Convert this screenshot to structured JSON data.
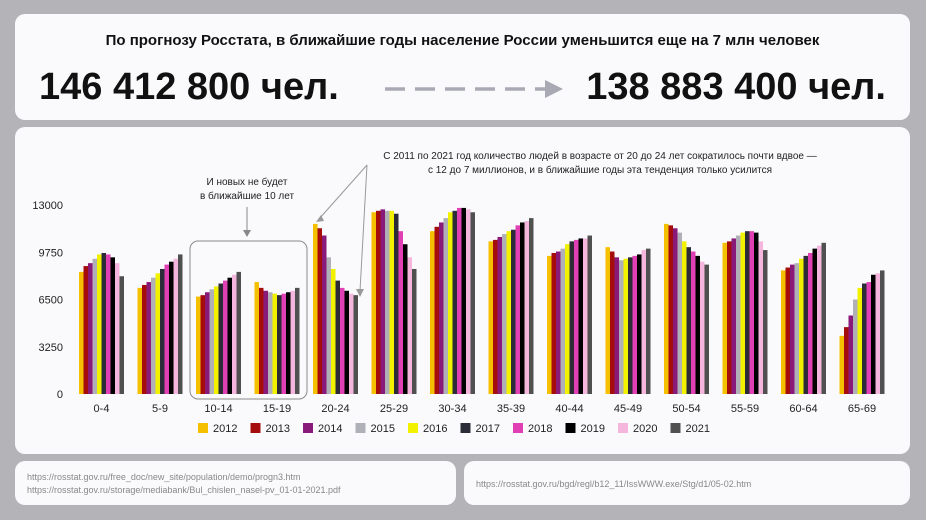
{
  "header": {
    "title": "По прогнозу Росстата, в ближайшие годы население России уменьшится еще на 7 млн человек",
    "current_population": "146 412 800 чел.",
    "forecast_population": "138 883 400 чел."
  },
  "sources": {
    "left": [
      "https://rosstat.gov.ru/free_doc/new_site/population/demo/progn3.htm",
      "https://rosstat.gov.ru/storage/mediabank/Bul_chislen_nasel-pv_01-01-2021.pdf"
    ],
    "right": "https://rosstat.gov.ru/bgd/regl/b12_11/IssWWW.exe/Stg/d1/05-02.htm"
  },
  "annotations": {
    "no_new": [
      "И новых не будет",
      "в ближайшие 10 лет"
    ],
    "halved": [
      "С 2011 по 2021 год количество людей в возрасте от 20 до 24 лет сократилось почти вдвое —",
      "с 12 до 7 миллионов, и в ближайшие годы эта тенденция только усилится"
    ]
  },
  "colors": {
    "arrow": "#a9a9b4",
    "axis_text": "#222222",
    "box_stroke": "#8a8a8a"
  },
  "chart_data": {
    "type": "bar",
    "categories": [
      "0-4",
      "5-9",
      "10-14",
      "15-19",
      "20-24",
      "25-29",
      "30-34",
      "35-39",
      "40-44",
      "45-49",
      "50-54",
      "55-59",
      "60-64",
      "65-69"
    ],
    "yticks": [
      0,
      3250,
      6500,
      9750,
      13000
    ],
    "ylim": [
      0,
      13000
    ],
    "legend_position": "bottom",
    "series": [
      {
        "name": "2012",
        "color": "#f5c000",
        "values": [
          8400,
          7300,
          6700,
          7700,
          11700,
          12500,
          11200,
          10500,
          9500,
          10100,
          11700,
          10400,
          8500,
          4000
        ]
      },
      {
        "name": "2013",
        "color": "#a50d0d",
        "values": [
          8800,
          7500,
          6800,
          7300,
          11400,
          12600,
          11500,
          10600,
          9700,
          9800,
          11600,
          10500,
          8700,
          4600
        ]
      },
      {
        "name": "2014",
        "color": "#8a1a7a",
        "values": [
          9000,
          7700,
          7000,
          7100,
          10900,
          12700,
          11800,
          10800,
          9800,
          9400,
          11400,
          10700,
          8900,
          5400
        ]
      },
      {
        "name": "2015",
        "color": "#b0b0b8",
        "values": [
          9300,
          8000,
          7200,
          7000,
          9400,
          12600,
          12100,
          11000,
          10000,
          9200,
          11100,
          10900,
          9000,
          6500
        ]
      },
      {
        "name": "2016",
        "color": "#f2f200",
        "values": [
          9600,
          8300,
          7400,
          6900,
          8600,
          12600,
          12500,
          11200,
          10300,
          9300,
          10500,
          11100,
          9300,
          7300
        ]
      },
      {
        "name": "2017",
        "color": "#2c2c38",
        "values": [
          9700,
          8600,
          7600,
          6800,
          7800,
          12400,
          12600,
          11300,
          10500,
          9400,
          10100,
          11200,
          9500,
          7600
        ]
      },
      {
        "name": "2018",
        "color": "#e040b4",
        "values": [
          9600,
          8900,
          7800,
          6900,
          7300,
          11200,
          12800,
          11600,
          10600,
          9500,
          9800,
          11200,
          9700,
          7700
        ]
      },
      {
        "name": "2019",
        "color": "#000000",
        "values": [
          9400,
          9100,
          8000,
          7000,
          7100,
          10300,
          12800,
          11800,
          10700,
          9600,
          9500,
          11100,
          10000,
          8200
        ]
      },
      {
        "name": "2020",
        "color": "#f4b6dc",
        "values": [
          9000,
          9300,
          8200,
          7100,
          6900,
          9400,
          12700,
          11900,
          10700,
          9900,
          9100,
          10500,
          10200,
          8300
        ]
      },
      {
        "name": "2021",
        "color": "#505050",
        "values": [
          8100,
          9600,
          8400,
          7300,
          6800,
          8600,
          12500,
          12100,
          10900,
          10000,
          8900,
          9900,
          10400,
          8500
        ]
      }
    ]
  }
}
